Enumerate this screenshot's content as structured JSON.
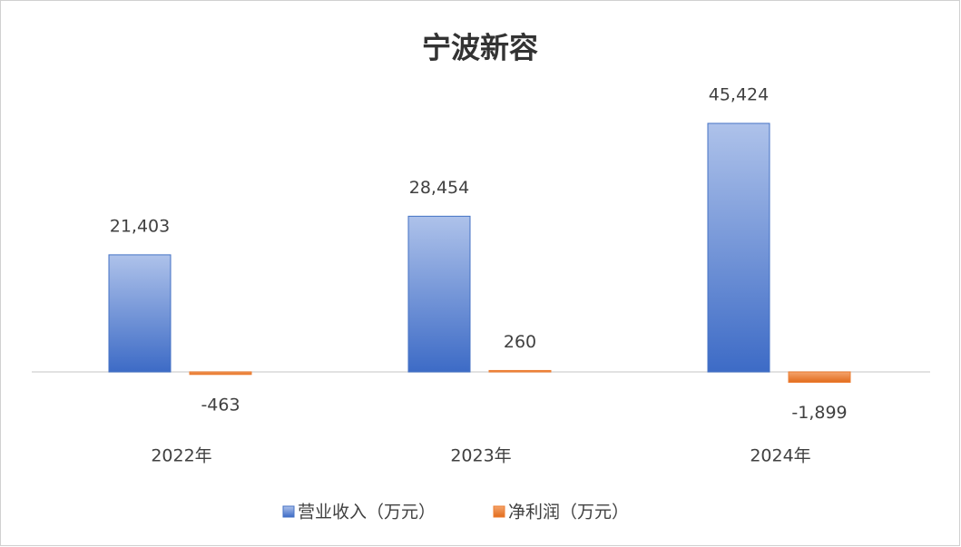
{
  "chart_data": {
    "type": "bar",
    "title": "宁波新容",
    "categories": [
      "2022年",
      "2023年",
      "2024年"
    ],
    "series": [
      {
        "name": "营业收入（万元）",
        "color": "#4472c4",
        "values": [
          21403,
          28454,
          45424
        ],
        "value_labels": [
          "21,403",
          "28,454",
          "45,424"
        ]
      },
      {
        "name": "净利润（万元）",
        "color": "#ed7d31",
        "values": [
          -463,
          260,
          -1899
        ],
        "value_labels": [
          "-463",
          "260",
          "-1,899"
        ]
      }
    ]
  }
}
